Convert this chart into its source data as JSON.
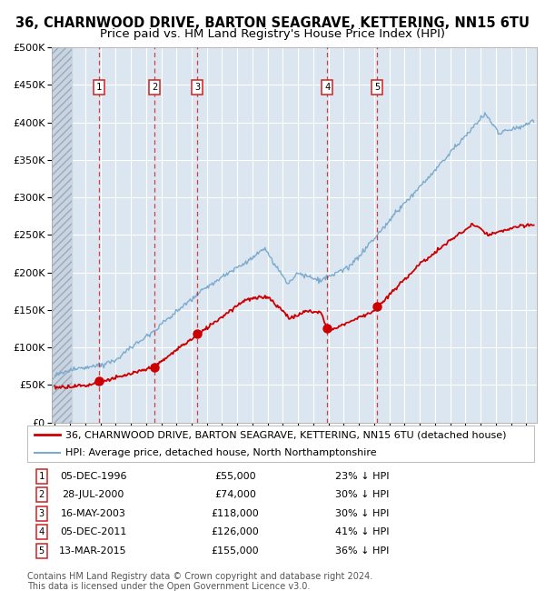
{
  "title1": "36, CHARNWOOD DRIVE, BARTON SEAGRAVE, KETTERING, NN15 6TU",
  "title2": "Price paid vs. HM Land Registry's House Price Index (HPI)",
  "background_color": "#ffffff",
  "plot_bg_color": "#dce6f0",
  "grid_color": "#ffffff",
  "sale_dates": [
    1996.92,
    2000.57,
    2003.37,
    2011.92,
    2015.19
  ],
  "sale_prices": [
    55000,
    74000,
    118000,
    126000,
    155000
  ],
  "sale_labels": [
    "1",
    "2",
    "3",
    "4",
    "5"
  ],
  "sale_date_strs": [
    "05-DEC-1996",
    "28-JUL-2000",
    "16-MAY-2003",
    "05-DEC-2011",
    "13-MAR-2015"
  ],
  "sale_price_strs": [
    "£55,000",
    "£74,000",
    "£118,000",
    "£126,000",
    "£155,000"
  ],
  "sale_hpi_strs": [
    "23% ↓ HPI",
    "30% ↓ HPI",
    "30% ↓ HPI",
    "41% ↓ HPI",
    "36% ↓ HPI"
  ],
  "red_line_color": "#cc0000",
  "blue_line_color": "#7aabce",
  "ylim": [
    0,
    500000
  ],
  "yticks": [
    0,
    50000,
    100000,
    150000,
    200000,
    250000,
    300000,
    350000,
    400000,
    450000,
    500000
  ],
  "xmin": 1993.8,
  "xmax": 2025.7,
  "legend_red_label": "36, CHARNWOOD DRIVE, BARTON SEAGRAVE, KETTERING, NN15 6TU (detached house)",
  "legend_blue_label": "HPI: Average price, detached house, North Northamptonshire",
  "footer_text": "Contains HM Land Registry data © Crown copyright and database right 2024.\nThis data is licensed under the Open Government Licence v3.0.",
  "title_fontsize": 10.5,
  "subtitle_fontsize": 9.5,
  "axis_fontsize": 8,
  "legend_fontsize": 8,
  "footer_fontsize": 7
}
